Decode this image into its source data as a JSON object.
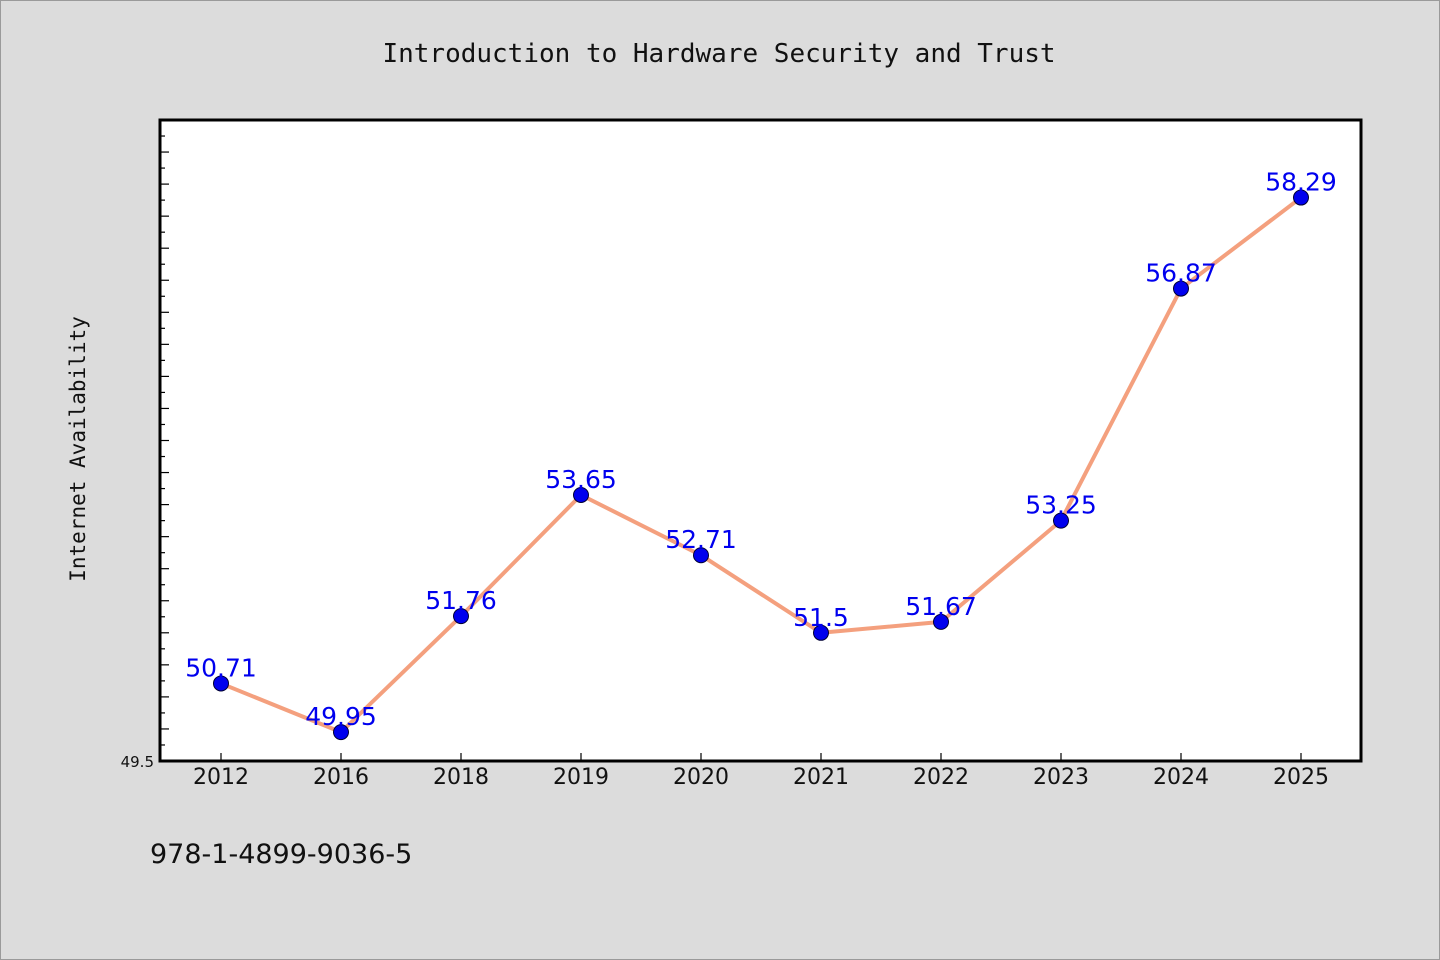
{
  "figure": {
    "title": "Introduction to Hardware Security and Trust",
    "footer_text": "978-1-4899-9036-5"
  },
  "chart_data": {
    "type": "line",
    "title": "Introduction to Hardware Security and Trust",
    "xlabel": "",
    "ylabel": "Internet Availability",
    "categories": [
      "2012",
      "2016",
      "2018",
      "2019",
      "2020",
      "2021",
      "2022",
      "2023",
      "2024",
      "2025"
    ],
    "series": [
      {
        "values": [
          50.71,
          49.95,
          51.76,
          53.65,
          52.71,
          51.5,
          51.67,
          53.25,
          56.87,
          58.29
        ]
      }
    ],
    "data_labels": [
      "50.71",
      "49.95",
      "51.76",
      "53.65",
      "52.71",
      "51.5",
      "51.67",
      "53.25",
      "56.87",
      "58.29"
    ],
    "ylim": [
      49.5,
      59.5
    ],
    "y_min_label": "49.5",
    "grid": false,
    "legend": "none",
    "colors": {
      "line": "#f4a07e",
      "marker": "#0000ee",
      "data_label": "#0000ee",
      "plot_background": "#ffffff",
      "figure_background": "#dcdcdc"
    }
  }
}
